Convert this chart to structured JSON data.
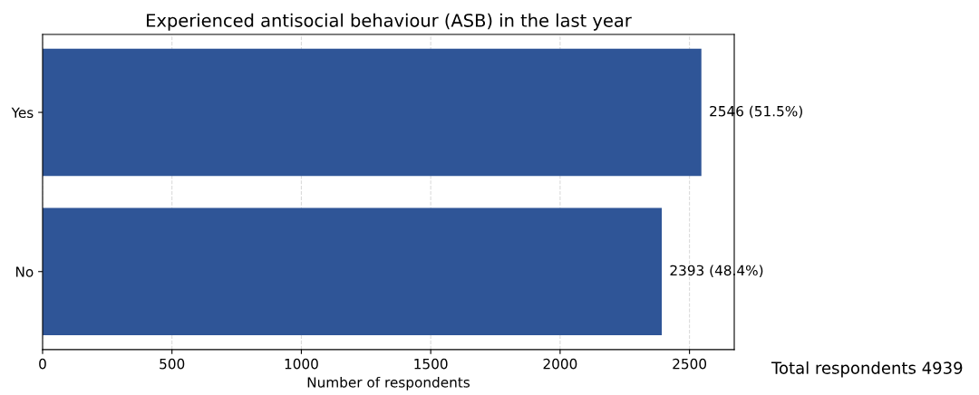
{
  "chart_data": {
    "type": "bar",
    "orientation": "horizontal",
    "title": "Experienced antisocial behaviour (ASB) in the last year",
    "xlabel": "Number of respondents",
    "categories": [
      "Yes",
      "No"
    ],
    "values": [
      2546,
      2393
    ],
    "value_labels": [
      "2546 (51.5%)",
      "2393 (48.4%)"
    ],
    "color": "#2f5597",
    "xlim": [
      0,
      2673
    ],
    "xticks": [
      0,
      500,
      1000,
      1500,
      2000,
      2500
    ],
    "grid": "x",
    "legend": false,
    "annotations": [
      "Total respondents 4939"
    ]
  }
}
